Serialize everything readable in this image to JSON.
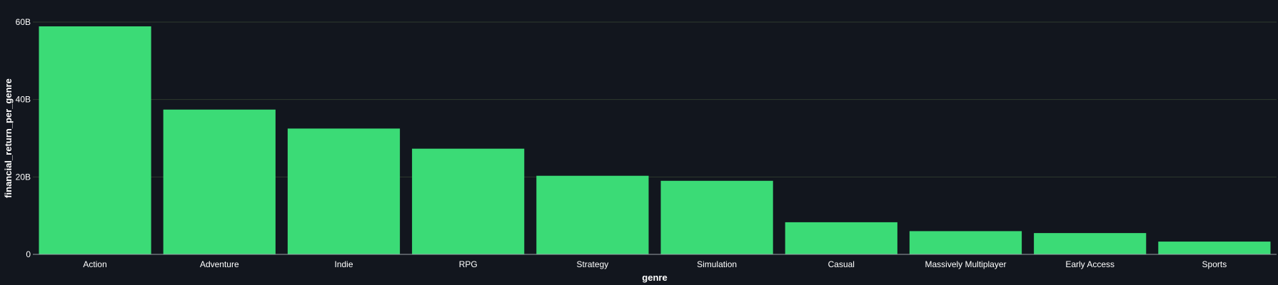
{
  "chart_data": {
    "type": "bar",
    "categories": [
      "Action",
      "Adventure",
      "Indie",
      "RPG",
      "Strategy",
      "Simulation",
      "Casual",
      "Massively Multiplayer",
      "Early Access",
      "Sports"
    ],
    "values": [
      58.9,
      37.4,
      32.5,
      27.3,
      20.3,
      19.0,
      8.3,
      6.0,
      5.5,
      3.3
    ],
    "value_unit": "B",
    "title": "",
    "xlabel": "genre",
    "ylabel": "financial_return_per_genre",
    "ylim": [
      0,
      60
    ],
    "yticks": [
      {
        "value": 0,
        "label": "0"
      },
      {
        "value": 20,
        "label": "20B"
      },
      {
        "value": 40,
        "label": "40B"
      },
      {
        "value": 60,
        "label": "60B"
      }
    ],
    "grid": true,
    "legend": "none",
    "colors": {
      "background": "#12161e",
      "bar": "#3bdb76",
      "grid": "#2e3a2f",
      "axis": "#9aa0a6",
      "text": "#ffffff"
    }
  }
}
